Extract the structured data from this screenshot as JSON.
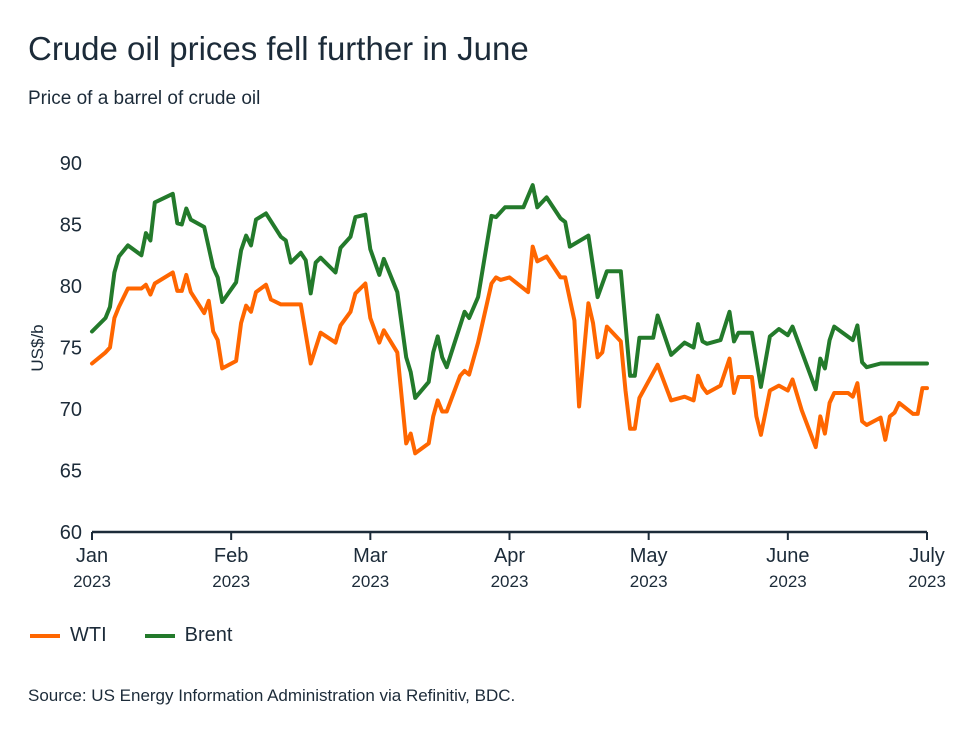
{
  "title": "Crude oil prices fell further in June",
  "subtitle": "Price of a barrel of crude oil",
  "source": "Source: US Energy Information Administration via Refinitiv, BDC.",
  "colors": {
    "wti": "#ff6600",
    "brent": "#237a2b",
    "axis": "#1c2b39"
  },
  "chart_data": {
    "type": "line",
    "title": "Crude oil prices fell further in June",
    "ylabel": "US$/b",
    "xlabel": "",
    "ylim": [
      60,
      90
    ],
    "yticks": [
      "60",
      "65",
      "70",
      "75",
      "80",
      "85",
      "90"
    ],
    "x_unit": "days since 2023-01-01",
    "xticks": [
      {
        "day": 0,
        "month": "Jan",
        "year": "2023"
      },
      {
        "day": 31,
        "month": "Feb",
        "year": "2023"
      },
      {
        "day": 59,
        "month": "Mar",
        "year": "2023"
      },
      {
        "day": 90,
        "month": "Apr",
        "year": "2023"
      },
      {
        "day": 120,
        "month": "May",
        "year": "2023"
      },
      {
        "day": 151,
        "month": "June",
        "year": "2023"
      },
      {
        "day": 181,
        "month": "July",
        "year": "2023"
      }
    ],
    "legend": "bottom-left",
    "series": [
      {
        "name": "WTI",
        "color": "#ff6600",
        "points": [
          [
            0,
            73.7
          ],
          [
            3,
            74.6
          ],
          [
            4,
            75.0
          ],
          [
            5,
            77.4
          ],
          [
            6,
            78.3
          ],
          [
            8,
            79.8
          ],
          [
            11,
            79.8
          ],
          [
            12,
            80.1
          ],
          [
            13,
            79.3
          ],
          [
            14,
            80.2
          ],
          [
            18,
            81.1
          ],
          [
            19,
            79.6
          ],
          [
            20,
            79.6
          ],
          [
            21,
            80.9
          ],
          [
            22,
            79.5
          ],
          [
            25,
            77.8
          ],
          [
            26,
            78.8
          ],
          [
            27,
            76.3
          ],
          [
            28,
            75.6
          ],
          [
            29,
            73.3
          ],
          [
            32,
            73.9
          ],
          [
            33,
            77.0
          ],
          [
            34,
            78.4
          ],
          [
            35,
            77.9
          ],
          [
            36,
            79.5
          ],
          [
            38,
            80.1
          ],
          [
            39,
            78.9
          ],
          [
            41,
            78.5
          ],
          [
            45,
            78.5
          ],
          [
            47,
            73.7
          ],
          [
            49,
            76.2
          ],
          [
            52,
            75.4
          ],
          [
            53,
            76.8
          ],
          [
            55,
            77.9
          ],
          [
            56,
            79.4
          ],
          [
            58,
            80.2
          ],
          [
            59,
            77.4
          ],
          [
            61,
            75.4
          ],
          [
            62,
            76.4
          ],
          [
            65,
            74.6
          ],
          [
            67,
            67.2
          ],
          [
            68,
            68.0
          ],
          [
            69,
            66.4
          ],
          [
            72,
            67.2
          ],
          [
            73,
            69.4
          ],
          [
            74,
            70.7
          ],
          [
            75,
            69.8
          ],
          [
            76,
            69.8
          ],
          [
            79,
            72.7
          ],
          [
            80,
            73.1
          ],
          [
            81,
            72.8
          ],
          [
            83,
            75.4
          ],
          [
            86,
            80.2
          ],
          [
            87,
            80.7
          ],
          [
            88,
            80.5
          ],
          [
            90,
            80.7
          ],
          [
            94,
            79.5
          ],
          [
            95,
            83.2
          ],
          [
            96,
            82.0
          ],
          [
            98,
            82.4
          ],
          [
            101,
            80.7
          ],
          [
            102,
            80.7
          ],
          [
            104,
            77.2
          ],
          [
            105,
            70.2
          ],
          [
            107,
            78.6
          ],
          [
            108,
            77.0
          ],
          [
            109,
            74.2
          ],
          [
            110,
            74.6
          ],
          [
            111,
            76.7
          ],
          [
            114,
            75.5
          ],
          [
            115,
            71.5
          ],
          [
            116,
            68.4
          ],
          [
            117,
            68.4
          ],
          [
            118,
            70.9
          ],
          [
            122,
            73.6
          ],
          [
            125,
            70.7
          ],
          [
            128,
            71.0
          ],
          [
            130,
            70.7
          ],
          [
            131,
            72.7
          ],
          [
            132,
            71.8
          ],
          [
            133,
            71.3
          ],
          [
            136,
            71.9
          ],
          [
            138,
            74.1
          ],
          [
            139,
            71.3
          ],
          [
            140,
            72.6
          ],
          [
            143,
            72.6
          ],
          [
            144,
            69.4
          ],
          [
            145,
            67.9
          ],
          [
            147,
            71.5
          ],
          [
            149,
            71.9
          ],
          [
            151,
            71.5
          ],
          [
            152,
            72.4
          ],
          [
            154,
            69.9
          ],
          [
            157,
            66.9
          ],
          [
            158,
            69.4
          ],
          [
            159,
            68.0
          ],
          [
            160,
            70.5
          ],
          [
            161,
            71.3
          ],
          [
            164,
            71.3
          ],
          [
            165,
            71.0
          ],
          [
            166,
            72.1
          ],
          [
            167,
            69.0
          ],
          [
            168,
            68.7
          ],
          [
            171,
            69.3
          ],
          [
            172,
            67.5
          ],
          [
            173,
            69.4
          ],
          [
            174,
            69.7
          ],
          [
            175,
            70.5
          ],
          [
            178,
            69.6
          ],
          [
            179,
            69.6
          ],
          [
            180,
            71.7
          ],
          [
            181,
            71.7
          ]
        ]
      },
      {
        "name": "Brent",
        "color": "#237a2b",
        "points": [
          [
            0,
            76.3
          ],
          [
            3,
            77.4
          ],
          [
            4,
            78.3
          ],
          [
            5,
            81.1
          ],
          [
            6,
            82.4
          ],
          [
            8,
            83.3
          ],
          [
            11,
            82.5
          ],
          [
            12,
            84.3
          ],
          [
            13,
            83.7
          ],
          [
            14,
            86.8
          ],
          [
            18,
            87.5
          ],
          [
            19,
            85.1
          ],
          [
            20,
            85.0
          ],
          [
            21,
            86.3
          ],
          [
            22,
            85.4
          ],
          [
            25,
            84.8
          ],
          [
            27,
            81.5
          ],
          [
            28,
            80.7
          ],
          [
            29,
            78.7
          ],
          [
            32,
            80.3
          ],
          [
            33,
            82.9
          ],
          [
            34,
            84.1
          ],
          [
            35,
            83.3
          ],
          [
            36,
            85.4
          ],
          [
            38,
            85.9
          ],
          [
            41,
            84.0
          ],
          [
            42,
            83.7
          ],
          [
            43,
            81.9
          ],
          [
            45,
            82.7
          ],
          [
            46,
            82.1
          ],
          [
            47,
            79.4
          ],
          [
            48,
            81.9
          ],
          [
            49,
            82.3
          ],
          [
            52,
            81.1
          ],
          [
            53,
            83.1
          ],
          [
            55,
            84.0
          ],
          [
            56,
            85.6
          ],
          [
            58,
            85.8
          ],
          [
            59,
            83.0
          ],
          [
            61,
            80.9
          ],
          [
            62,
            82.2
          ],
          [
            65,
            79.5
          ],
          [
            67,
            74.2
          ],
          [
            68,
            73.0
          ],
          [
            69,
            70.9
          ],
          [
            72,
            72.2
          ],
          [
            73,
            74.6
          ],
          [
            74,
            75.9
          ],
          [
            75,
            74.2
          ],
          [
            76,
            73.4
          ],
          [
            80,
            77.9
          ],
          [
            81,
            77.4
          ],
          [
            83,
            79.1
          ],
          [
            86,
            85.7
          ],
          [
            87,
            85.6
          ],
          [
            89,
            86.4
          ],
          [
            93,
            86.4
          ],
          [
            95,
            88.2
          ],
          [
            96,
            86.4
          ],
          [
            98,
            87.2
          ],
          [
            101,
            85.5
          ],
          [
            102,
            85.2
          ],
          [
            103,
            83.2
          ],
          [
            107,
            84.1
          ],
          [
            109,
            79.1
          ],
          [
            111,
            81.2
          ],
          [
            114,
            81.2
          ],
          [
            116,
            72.7
          ],
          [
            117,
            72.7
          ],
          [
            118,
            75.8
          ],
          [
            121,
            75.8
          ],
          [
            122,
            77.6
          ],
          [
            125,
            74.4
          ],
          [
            128,
            75.4
          ],
          [
            130,
            75.0
          ],
          [
            131,
            76.9
          ],
          [
            132,
            75.5
          ],
          [
            133,
            75.3
          ],
          [
            136,
            75.6
          ],
          [
            138,
            77.9
          ],
          [
            139,
            75.5
          ],
          [
            140,
            76.2
          ],
          [
            143,
            76.2
          ],
          [
            145,
            71.8
          ],
          [
            147,
            75.9
          ],
          [
            149,
            76.5
          ],
          [
            151,
            76.0
          ],
          [
            152,
            76.7
          ],
          [
            157,
            71.6
          ],
          [
            158,
            74.1
          ],
          [
            159,
            73.3
          ],
          [
            160,
            75.6
          ],
          [
            161,
            76.7
          ],
          [
            165,
            75.6
          ],
          [
            166,
            76.8
          ],
          [
            167,
            73.8
          ],
          [
            168,
            73.4
          ],
          [
            171,
            73.7
          ],
          [
            181,
            73.7
          ]
        ]
      }
    ]
  }
}
